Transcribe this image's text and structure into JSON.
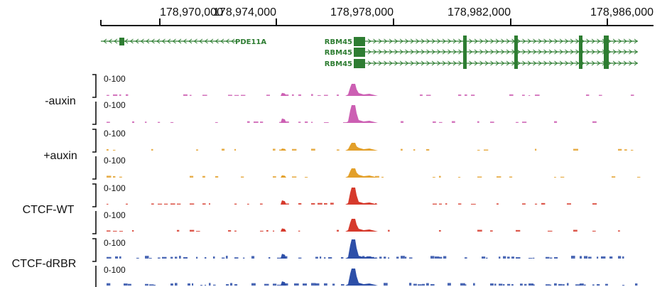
{
  "colors": {
    "gene": "#2e7d32",
    "auxin_minus": "#cc5fb3",
    "auxin_plus": "#e3a02a",
    "ctcf_wt": "#d63a2c",
    "ctcf_drbr": "#2d4fa8"
  },
  "axis": {
    "ticks": [
      "178,970,000",
      "178,974,000",
      "178,978,000",
      "178,982,000",
      "178,986,000"
    ]
  },
  "genes": [
    {
      "label": "PDE11A",
      "strand": "-"
    },
    {
      "label": "RBM45",
      "strand": "+"
    },
    {
      "label": "RBM45",
      "strand": "+"
    },
    {
      "label": "RBM45",
      "strand": "+"
    }
  ],
  "groups": [
    {
      "label": "-auxin",
      "color_key": "auxin_minus",
      "tracks": [
        {
          "scale": "0-100"
        },
        {
          "scale": "0-100"
        }
      ]
    },
    {
      "label": "+auxin",
      "color_key": "auxin_plus",
      "tracks": [
        {
          "scale": "0-100"
        },
        {
          "scale": "0-100"
        }
      ]
    },
    {
      "label": "CTCF-WT",
      "color_key": "ctcf_wt",
      "tracks": [
        {
          "scale": "0-100"
        },
        {
          "scale": "0-100"
        }
      ]
    },
    {
      "label": "CTCF-dRBR",
      "color_key": "ctcf_drbr",
      "tracks": [
        {
          "scale": "0-100"
        },
        {
          "scale": "0-100"
        }
      ]
    }
  ],
  "signal_peak": {
    "position": "178,976,800"
  }
}
